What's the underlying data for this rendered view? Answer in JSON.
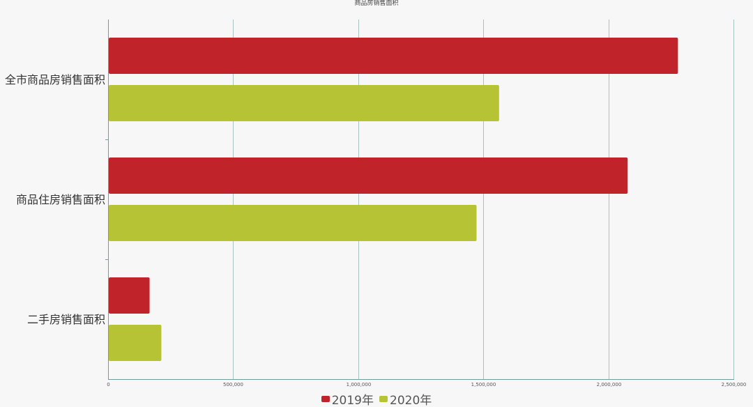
{
  "chart_data": {
    "type": "bar",
    "orientation": "horizontal",
    "title": "商品房销售面积",
    "categories": [
      "全市商品房销售面积",
      "商品住房销售面积",
      "二手房销售面积"
    ],
    "series": [
      {
        "name": "2019年",
        "color": "#c1232b",
        "values": [
          2278000,
          2077000,
          166000
        ]
      },
      {
        "name": "2020年",
        "color": "#b5c334",
        "values": [
          1563000,
          1473000,
          213000
        ]
      }
    ],
    "xlim": [
      0,
      2500000
    ],
    "x_ticks": [
      0,
      500000,
      1000000,
      1500000,
      2000000,
      2500000
    ],
    "x_tick_labels": [
      "0",
      "500,000",
      "1,000,000",
      "1,500,000",
      "2,000,000",
      "2,500,000"
    ],
    "grid": true,
    "legend_position": "bottom-center",
    "grid_color": "#a9c1c1"
  }
}
